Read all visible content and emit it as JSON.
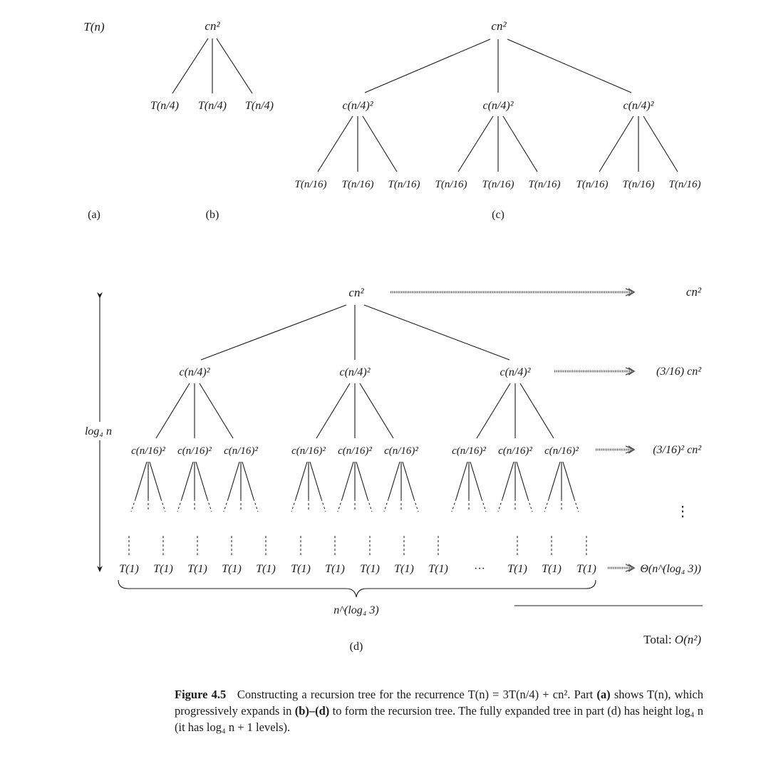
{
  "parts": {
    "a": {
      "label": "(a)",
      "node": "T(n)"
    },
    "b": {
      "label": "(b)",
      "root": "cn²",
      "child": "T(n/4)"
    },
    "c": {
      "label": "(c)",
      "root": "cn²",
      "level1": "c(n/4)²",
      "level2": "T(n/16)"
    },
    "d": {
      "label": "(d)",
      "root": "cn²",
      "level1": "c(n/4)²",
      "level2": "c(n/16)²",
      "leaf": "T(1)",
      "ellipsis": "···",
      "leaf_count_label": "n^(log₄ 3)",
      "height_label": "log₄ n",
      "level_costs": [
        "cn²",
        "(3/16) cn²",
        "(3/16)² cn²",
        "⋮",
        "Θ(n^(log₄ 3))"
      ],
      "total_label": "Total:",
      "total_value": "O(n²)"
    }
  },
  "caption": {
    "figure_label": "Figure 4.5",
    "text_1": "Constructing a recursion tree for the recurrence T(n) = 3T(n/4) + cn². Part",
    "part_a": "(a)",
    "text_2": "shows T(n), which progressively expands in",
    "part_bd": "(b)–(d)",
    "text_3": "to form the recursion tree. The fully expanded tree in part (d) has height log₄ n (it has log₄ n + 1 levels)."
  }
}
